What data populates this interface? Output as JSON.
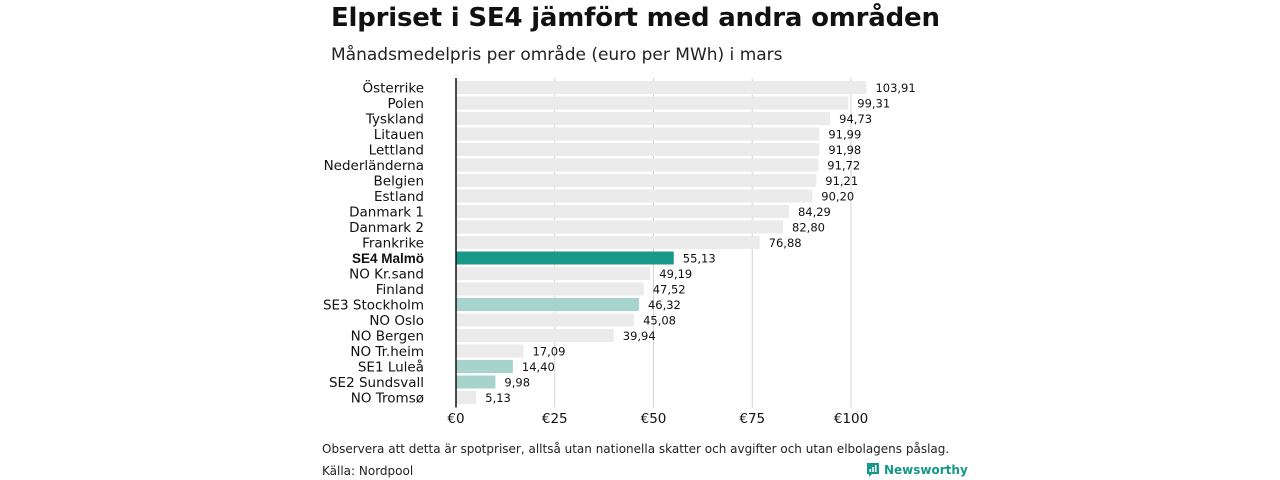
{
  "title": "Elpriset i SE4 jämfört med andra områden",
  "subtitle": "Månadsmedelpris per område (euro per MWh) i mars",
  "note": "Observera att detta är spotpriser, alltså utan nationella skatter och avgifter och utan elbolagens påslag.",
  "source": "Källa: Nordpool",
  "brand": {
    "name": "Newsworthy",
    "icon": "newsworthy-logo-icon",
    "color": "#149888"
  },
  "colors": {
    "default": "#ebebeb",
    "highlight": "#1a9988",
    "secondary": "#a6d4cc",
    "axis": "#111111",
    "grid": "#d4d4d4"
  },
  "chart_data": {
    "type": "bar",
    "orientation": "horizontal",
    "title": "Elpriset i SE4 jämfört med andra områden",
    "subtitle": "Månadsmedelpris per område (euro per MWh) i mars",
    "categories": [
      "Österrike",
      "Polen",
      "Tyskland",
      "Litauen",
      "Lettland",
      "Nederländerna",
      "Belgien",
      "Estland",
      "Danmark  1",
      "Danmark  2",
      "Frankrike",
      "SE4 Malmö",
      "NO Kr.sand",
      "Finland",
      "SE3  Stockholm",
      "NO Oslo",
      "NO Bergen",
      "NO Tr.heim",
      "SE1  Luleå",
      "SE2  Sundsvall",
      "NO Tromsø"
    ],
    "values": [
      103.91,
      99.31,
      94.73,
      91.99,
      91.98,
      91.72,
      91.21,
      90.2,
      84.29,
      82.8,
      76.88,
      55.13,
      49.19,
      47.52,
      46.32,
      45.08,
      39.94,
      17.09,
      14.4,
      9.98,
      5.13
    ],
    "value_labels": [
      "103,91",
      "99,31",
      "94,73",
      "91,99",
      "91,98",
      "91,72",
      "91,21",
      "90,20",
      "84,29",
      "82,80",
      "76,88",
      "55,13",
      "49,19",
      "47,52",
      "46,32",
      "45,08",
      "39,94",
      "17,09",
      "14,40",
      "9,98",
      "5,13"
    ],
    "bar_style": [
      "default",
      "default",
      "default",
      "default",
      "default",
      "default",
      "default",
      "default",
      "default",
      "default",
      "default",
      "highlight",
      "default",
      "default",
      "secondary",
      "default",
      "default",
      "default",
      "secondary",
      "secondary",
      "default"
    ],
    "bold_labels": [
      "SE4 Malmö"
    ],
    "xlim": [
      0,
      104
    ],
    "xticks": [
      0,
      25,
      50,
      75,
      100
    ],
    "xtick_labels": [
      "€0",
      "€25",
      "€50",
      "€75",
      "€100"
    ],
    "grid": true,
    "legend": "none"
  }
}
